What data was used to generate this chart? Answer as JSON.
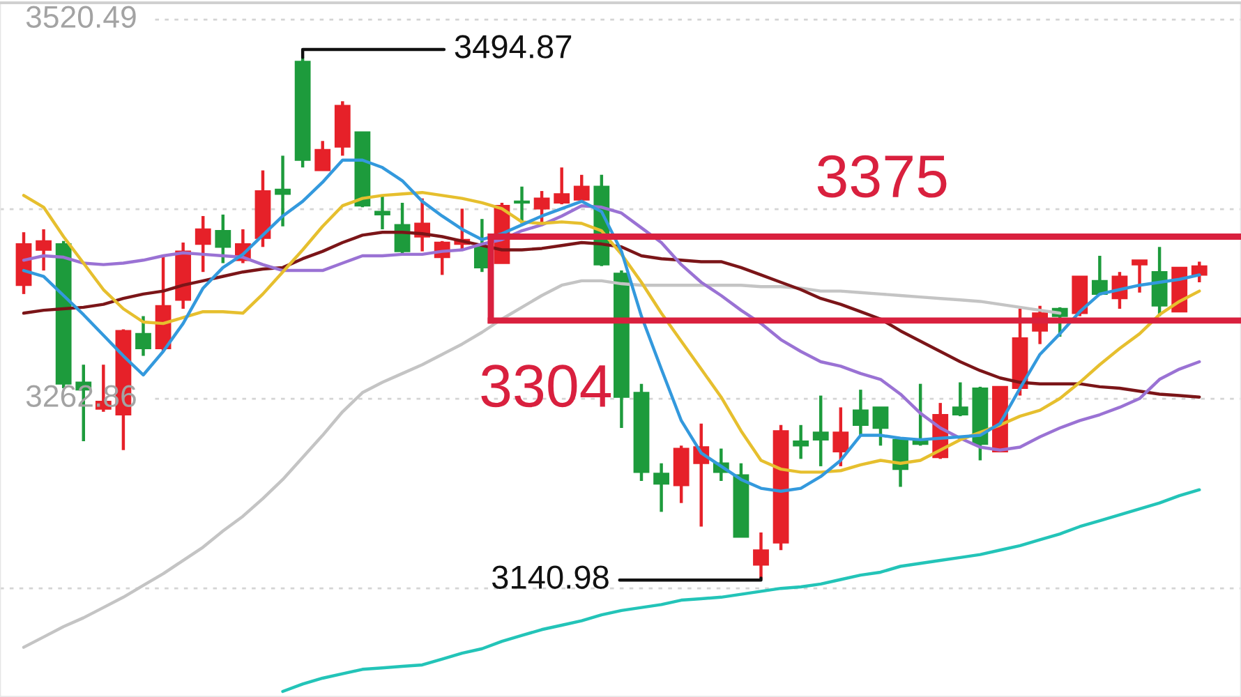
{
  "chart_data": {
    "type": "candlestick",
    "categories": [
      null,
      null,
      null,
      null,
      null,
      null,
      null,
      null,
      null,
      null,
      null,
      null,
      null,
      null,
      null,
      null,
      null,
      null,
      null,
      null,
      null,
      null,
      null,
      null,
      null,
      null,
      null,
      null,
      null,
      null,
      null,
      null,
      null,
      null,
      null,
      null,
      null,
      null,
      null,
      null,
      null,
      null,
      null,
      null,
      null,
      null,
      null,
      null,
      null,
      null,
      null,
      null,
      null,
      null,
      null,
      null,
      null,
      null,
      null,
      null
    ],
    "ohlc": [
      [
        3340,
        3376,
        3334,
        3368
      ],
      [
        3364,
        3378,
        3350,
        3370
      ],
      [
        3368,
        3370,
        3270,
        3273
      ],
      [
        3274,
        3286,
        3234,
        3269
      ],
      [
        3256,
        3286,
        3254,
        3261
      ],
      [
        3252,
        3310,
        3228,
        3309
      ],
      [
        3307,
        3319,
        3292,
        3297
      ],
      [
        3297,
        3359,
        3295,
        3326
      ],
      [
        3330,
        3369,
        3324,
        3363
      ],
      [
        3368,
        3387,
        3349,
        3378
      ],
      [
        3377,
        3388,
        3355,
        3366
      ],
      [
        3357,
        3378,
        3355,
        3368
      ],
      [
        3372,
        3418,
        3366,
        3404
      ],
      [
        3405,
        3428,
        3380,
        3402
      ],
      [
        3492,
        3494.87,
        3420,
        3425
      ],
      [
        3418,
        3438,
        3418,
        3432
      ],
      [
        3434,
        3465,
        3428,
        3462
      ],
      [
        3444,
        3444,
        3393,
        3394
      ],
      [
        3390,
        3401,
        3378,
        3388
      ],
      [
        3381,
        3396,
        3360,
        3363
      ],
      [
        3373,
        3399,
        3363,
        3382
      ],
      [
        3359,
        3370,
        3347,
        3369
      ],
      [
        3368,
        3392,
        3364,
        3371
      ],
      [
        3366,
        3385,
        3349,
        3352
      ],
      [
        3355,
        3396,
        3355,
        3394
      ],
      [
        3397,
        3407,
        3382,
        3396
      ],
      [
        3392,
        3404,
        3382,
        3399
      ],
      [
        3396,
        3420,
        3395,
        3402
      ],
      [
        3398,
        3415,
        3396,
        3407
      ],
      [
        3407,
        3415,
        3353,
        3354
      ],
      [
        3348,
        3350,
        3243,
        3264
      ],
      [
        3267,
        3273,
        3207,
        3213
      ],
      [
        3212,
        3219,
        3186,
        3205
      ],
      [
        3204,
        3231,
        3192,
        3229
      ],
      [
        3219,
        3246,
        3176,
        3230
      ],
      [
        3219,
        3229,
        3207,
        3213
      ],
      [
        3211,
        3219,
        3169,
        3169
      ],
      [
        3150,
        3172,
        3140.98,
        3160
      ],
      [
        3165,
        3245,
        3160,
        3241
      ],
      [
        3234,
        3245,
        3222,
        3231
      ],
      [
        3240,
        3265,
        3217,
        3235
      ],
      [
        3227,
        3257,
        3217,
        3240
      ],
      [
        3255,
        3269,
        3238,
        3245
      ],
      [
        3257,
        3257,
        3231,
        3243
      ],
      [
        3235,
        3235,
        3203,
        3215
      ],
      [
        3235,
        3273,
        3231,
        3232
      ],
      [
        3223,
        3260,
        3222,
        3252
      ],
      [
        3257,
        3274,
        3251,
        3252
      ],
      [
        3270,
        3271,
        3221,
        3232
      ],
      [
        3227,
        3271,
        3227,
        3271
      ],
      [
        3270,
        3324,
        3265,
        3304
      ],
      [
        3309,
        3326,
        3300,
        3321
      ],
      [
        3324,
        3325,
        3305,
        3319
      ],
      [
        3321,
        3346,
        3319,
        3346
      ],
      [
        3343,
        3360,
        3333,
        3334
      ],
      [
        3331,
        3349,
        3324,
        3346
      ],
      [
        3354,
        3357,
        3335,
        3357
      ],
      [
        3349,
        3366,
        3319,
        3326
      ],
      [
        3322,
        3352,
        3322,
        3352
      ],
      [
        3347,
        3356,
        3342,
        3353
      ]
    ],
    "colors": [
      "#e62129",
      "#e62129",
      "#1d9b3c",
      "#1d9b3c",
      "#e62129",
      "#e62129",
      "#1d9b3c",
      "#e62129",
      "#e62129",
      "#e62129",
      "#1d9b3c",
      "#e62129",
      "#e62129",
      "#1d9b3c",
      "#1d9b3c",
      "#e62129",
      "#e62129",
      "#1d9b3c",
      "#1d9b3c",
      "#1d9b3c",
      "#e62129",
      "#e62129",
      "#e62129",
      "#1d9b3c",
      "#e62129",
      "#1d9b3c",
      "#e62129",
      "#e62129",
      "#e62129",
      "#1d9b3c",
      "#1d9b3c",
      "#1d9b3c",
      "#1d9b3c",
      "#e62129",
      "#e62129",
      "#1d9b3c",
      "#1d9b3c",
      "#e62129",
      "#e62129",
      "#1d9b3c",
      "#1d9b3c",
      "#e62129",
      "#1d9b3c",
      "#1d9b3c",
      "#1d9b3c",
      "#1d9b3c",
      "#e62129",
      "#1d9b3c",
      "#1d9b3c",
      "#e62129",
      "#e62129",
      "#e62129",
      "#1d9b3c",
      "#e62129",
      "#1d9b3c",
      "#e62129",
      "#e62129",
      "#1d9b3c",
      "#e62129",
      "#e62129"
    ],
    "series": [
      {
        "type": "line",
        "color": "#3399dd",
        "values": [
          3350,
          3346,
          3333,
          3320,
          3306,
          3292,
          3279,
          3295,
          3314,
          3338,
          3352,
          3361,
          3374,
          3387,
          3397,
          3410,
          3425,
          3425,
          3420,
          3411,
          3397,
          3387,
          3378,
          3371,
          3375,
          3381,
          3387,
          3392,
          3397,
          3390,
          3363,
          3319,
          3283,
          3248,
          3226,
          3217,
          3208,
          3202,
          3200,
          3202,
          3210,
          3221,
          3238,
          3238,
          3236,
          3235,
          3236,
          3237,
          3238,
          3246,
          3270,
          3293,
          3307,
          3322,
          3334,
          3337,
          3340,
          3342,
          3344,
          3347
        ]
      },
      {
        "type": "line",
        "color": "#e6bf2e",
        "values": [
          3401,
          3393,
          3373,
          3355,
          3337,
          3324,
          3315,
          3314,
          3318,
          3322,
          3322,
          3321,
          3334,
          3349,
          3364,
          3380,
          3394,
          3399,
          3401,
          3402,
          3403,
          3401,
          3399,
          3396,
          3392,
          3383,
          3382,
          3383,
          3382,
          3377,
          3361,
          3342,
          3321,
          3302,
          3283,
          3264,
          3241,
          3221,
          3215,
          3213,
          3213,
          3214,
          3218,
          3221,
          3219,
          3221,
          3228,
          3235,
          3240,
          3245,
          3251,
          3255,
          3263,
          3274,
          3286,
          3297,
          3307,
          3320,
          3329,
          3336
        ]
      },
      {
        "type": "line",
        "color": "#9a72d4",
        "values": [
          3357,
          3360,
          3359,
          3355,
          3354,
          3355,
          3357,
          3360,
          3362,
          3361,
          3360,
          3359,
          3354,
          3350,
          3350,
          3350,
          3355,
          3360,
          3360,
          3361,
          3361,
          3363,
          3364,
          3368,
          3371,
          3377,
          3381,
          3387,
          3394,
          3393,
          3389,
          3379,
          3369,
          3354,
          3342,
          3333,
          3323,
          3314,
          3303,
          3295,
          3288,
          3285,
          3280,
          3276,
          3266,
          3253,
          3243,
          3236,
          3230,
          3228,
          3230,
          3237,
          3243,
          3248,
          3252,
          3257,
          3263,
          3276,
          3283,
          3288
        ]
      },
      {
        "type": "line",
        "color": "#7b1518",
        "values": [
          3321,
          3323,
          3324,
          3325,
          3327,
          3331,
          3334,
          3336,
          3340,
          3343,
          3346,
          3349,
          3351,
          3352,
          3358,
          3363,
          3369,
          3374,
          3376,
          3376,
          3375,
          3373,
          3370,
          3367,
          3364,
          3364,
          3365,
          3367,
          3369,
          3368,
          3366,
          3360,
          3358,
          3357,
          3356,
          3356,
          3352,
          3347,
          3342,
          3337,
          3331,
          3327,
          3322,
          3317,
          3309,
          3302,
          3295,
          3288,
          3282,
          3277,
          3274,
          3273,
          3273,
          3273,
          3271,
          3270,
          3268,
          3266,
          3265,
          3264
        ]
      },
      {
        "type": "line",
        "color": "#c4c4c4",
        "values": [
          3094,
          3101,
          3108,
          3114,
          3121,
          3128,
          3136,
          3144,
          3153,
          3162,
          3173,
          3183,
          3195,
          3208,
          3223,
          3238,
          3254,
          3267,
          3274,
          3280,
          3286,
          3293,
          3300,
          3308,
          3317,
          3325,
          3333,
          3340,
          3343,
          3343,
          3341,
          3340,
          3340,
          3340,
          3340,
          3340,
          3340,
          3339,
          3339,
          3338,
          3336,
          3336,
          3335,
          3334,
          3333,
          3332,
          3331,
          3330,
          3329,
          3327,
          3325,
          3323,
          3321,
          null,
          null,
          null,
          null,
          null,
          null,
          null
        ]
      },
      {
        "type": "line",
        "color": "#23c4b8",
        "values": [
          null,
          null,
          null,
          null,
          null,
          null,
          null,
          null,
          null,
          null,
          null,
          null,
          null,
          3064,
          3069,
          3073,
          3076,
          3079,
          3080,
          3081,
          3082,
          3086,
          3090,
          3093,
          3098,
          3102,
          3106,
          3109,
          3112,
          3116,
          3119,
          3121,
          3123,
          3126,
          3127,
          3128,
          3130,
          3132,
          3134,
          3135,
          3137,
          3140,
          3143,
          3145,
          3149,
          3151,
          3153,
          3155,
          3157,
          3160,
          3163,
          3167,
          3171,
          3176,
          3180,
          3184,
          3188,
          3192,
          3197,
          3201
        ]
      }
    ],
    "ylim": [
      3060.2,
      3531.9
    ],
    "yticks": [
      3520.49,
      {
        "value": 3391.68,
        "label": null
      },
      3262.86,
      {
        "value": 3134.05,
        "label": null
      }
    ],
    "grid": "y",
    "tick_labels": "y",
    "ref_lines": [
      {
        "axis": "y",
        "value": 3373,
        "color": "#d9203e"
      },
      {
        "axis": "y",
        "value": 3316,
        "color": "#d9203e"
      }
    ],
    "annotations": [
      "3494.87",
      "3140.98",
      "3375",
      "3304"
    ]
  }
}
